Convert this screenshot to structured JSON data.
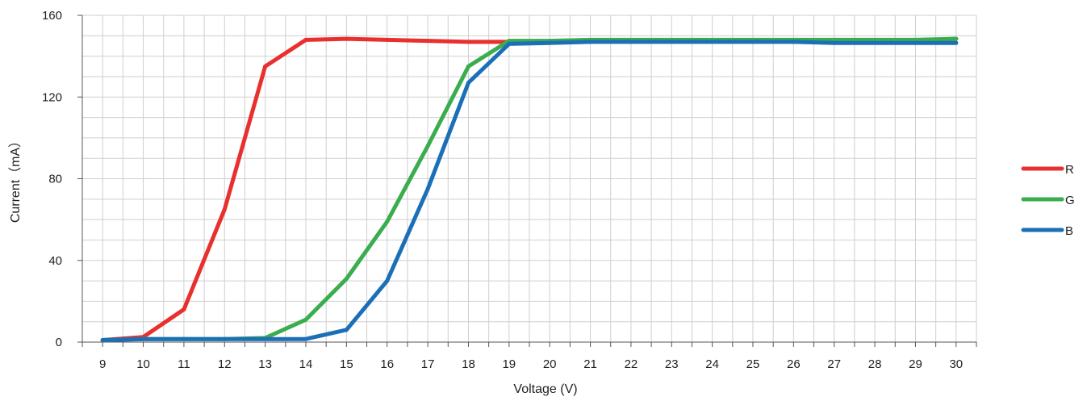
{
  "chart_data": {
    "type": "line",
    "title": "",
    "xlabel": "Voltage (V)",
    "ylabel": "Current（mA）",
    "x": [
      9,
      10,
      11,
      12,
      13,
      14,
      15,
      16,
      17,
      18,
      19,
      20,
      21,
      22,
      23,
      24,
      25,
      26,
      27,
      28,
      29,
      30
    ],
    "xlim": [
      8.5,
      30.5
    ],
    "ylim": [
      0,
      160
    ],
    "y_ticks": [
      0,
      40,
      80,
      120,
      160
    ],
    "grid": true,
    "legend_position": "right",
    "series": [
      {
        "name": "R",
        "color": "#e8302e",
        "values": [
          1,
          2.5,
          16,
          65,
          135,
          148,
          148.5,
          148,
          147.5,
          147,
          147,
          147,
          147.5,
          147.5,
          147.5,
          147.5,
          147.5,
          147.5,
          147.5,
          147.5,
          147.5,
          148.5
        ]
      },
      {
        "name": "G",
        "color": "#3aad4e",
        "values": [
          1,
          1.5,
          1.5,
          1.5,
          2,
          11,
          31,
          59,
          96,
          135,
          147.5,
          147.5,
          148,
          148,
          148,
          148,
          148,
          148,
          148,
          148,
          148,
          148.5
        ]
      },
      {
        "name": "B",
        "color": "#1b6fb7",
        "values": [
          1,
          1.5,
          1.5,
          1.5,
          1.5,
          1.5,
          6,
          30,
          75,
          127,
          146,
          146.5,
          147,
          147,
          147,
          147,
          147,
          147,
          146.5,
          146.5,
          146.5,
          146.5
        ]
      }
    ]
  }
}
